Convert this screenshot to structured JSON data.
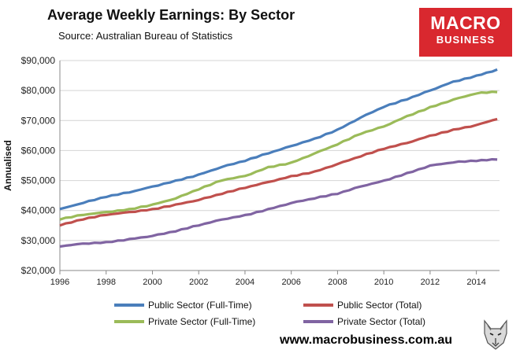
{
  "header": {
    "title": "Average Weekly Earnings: By Sector",
    "source": "Source: Australian Bureau of Statistics"
  },
  "logo": {
    "line1": "MACRO",
    "line2": "BUSINESS",
    "color": "#d9282f"
  },
  "footer": {
    "website": "www.macrobusiness.com.au",
    "wolf_icon": "wolf-head-icon"
  },
  "chart_data": {
    "type": "line",
    "title": "Average Weekly Earnings: By Sector",
    "xlabel": "",
    "ylabel": "Annualised",
    "xlim": [
      1996,
      2015
    ],
    "ylim": [
      20000,
      90000
    ],
    "x_ticks": [
      1996,
      1998,
      2000,
      2002,
      2004,
      2006,
      2008,
      2010,
      2012,
      2014
    ],
    "y_ticks": [
      20000,
      30000,
      40000,
      50000,
      60000,
      70000,
      80000,
      90000
    ],
    "grid": "horizontal",
    "legend_position": "bottom",
    "series": [
      {
        "name": "Public Sector (Full-Time)",
        "color": "#4a7ebb",
        "x": [
          1996,
          1997,
          1998,
          1999,
          2000,
          2001,
          2002,
          2003,
          2004,
          2005,
          2006,
          2007,
          2008,
          2009,
          2010,
          2011,
          2012,
          2013,
          2014,
          2014.9
        ],
        "y": [
          40500,
          42500,
          44500,
          46000,
          48000,
          50000,
          52000,
          54500,
          56500,
          59000,
          61500,
          64000,
          67000,
          71000,
          74500,
          77000,
          80000,
          83000,
          85000,
          87000
        ]
      },
      {
        "name": "Public Sector (Total)",
        "color": "#c0504d",
        "x": [
          1996,
          1997,
          1998,
          1999,
          2000,
          2001,
          2002,
          2003,
          2004,
          2005,
          2006,
          2007,
          2008,
          2009,
          2010,
          2011,
          2012,
          2013,
          2014,
          2014.9
        ],
        "y": [
          35000,
          37000,
          38500,
          39500,
          40500,
          42000,
          43500,
          45500,
          47500,
          49500,
          51500,
          53000,
          55500,
          58000,
          60500,
          62500,
          65000,
          67000,
          68500,
          70500
        ]
      },
      {
        "name": "Private Sector (Full-Time)",
        "color": "#9bbb59",
        "x": [
          1996,
          1997,
          1998,
          1999,
          2000,
          2001,
          2002,
          2003,
          2004,
          2005,
          2006,
          2007,
          2008,
          2009,
          2010,
          2011,
          2012,
          2013,
          2014,
          2014.9
        ],
        "y": [
          37000,
          38500,
          39500,
          40500,
          42000,
          44000,
          47000,
          50000,
          51500,
          54500,
          56000,
          59000,
          62000,
          65500,
          68000,
          71500,
          74500,
          77000,
          79000,
          79500
        ]
      },
      {
        "name": "Private Sector (Total)",
        "color": "#8064a2",
        "x": [
          1996,
          1997,
          1998,
          1999,
          2000,
          2001,
          2002,
          2003,
          2004,
          2005,
          2006,
          2007,
          2008,
          2009,
          2010,
          2011,
          2012,
          2013,
          2014,
          2014.9
        ],
        "y": [
          28000,
          29000,
          29500,
          30500,
          31500,
          33000,
          35000,
          37000,
          38500,
          40500,
          42500,
          44000,
          45500,
          48000,
          50000,
          52500,
          55000,
          56000,
          56500,
          57000
        ]
      }
    ]
  }
}
